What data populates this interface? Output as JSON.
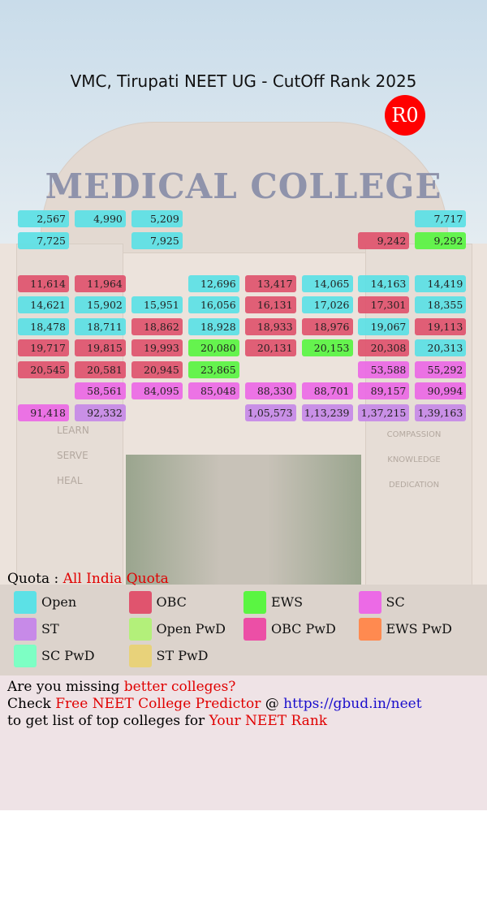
{
  "header": {
    "title": "VMC, Tirupati NEET UG - CutOff Rank 2025",
    "round": "R0"
  },
  "background": {
    "sign": "MEDICAL COLLEGE",
    "left_words": [
      "LEARN",
      "SERVE",
      "HEAL"
    ],
    "right_words": [
      "COMPASSION",
      "KNOWLEDGE",
      "DEDICATION"
    ]
  },
  "grid": {
    "rows": [
      [
        {
          "text": "2,567",
          "quota": "Open"
        },
        {
          "text": "4,990",
          "quota": "Open"
        },
        {
          "text": "5,209",
          "quota": "Open"
        },
        null,
        null,
        null,
        null,
        {
          "text": "7,717",
          "quota": "Open"
        }
      ],
      [
        {
          "text": "7,725",
          "quota": "Open"
        },
        null,
        {
          "text": "7,925",
          "quota": "Open"
        },
        null,
        null,
        null,
        {
          "text": "9,242",
          "quota": "OBC"
        },
        {
          "text": "9,292",
          "quota": "EWS"
        }
      ],
      [
        null,
        null,
        null,
        null,
        null,
        null,
        null,
        null
      ],
      [
        {
          "text": "11,614",
          "quota": "OBC"
        },
        {
          "text": "11,964",
          "quota": "OBC"
        },
        null,
        {
          "text": "12,696",
          "quota": "Open"
        },
        {
          "text": "13,417",
          "quota": "OBC"
        },
        {
          "text": "14,065",
          "quota": "Open"
        },
        {
          "text": "14,163",
          "quota": "Open"
        },
        {
          "text": "14,419",
          "quota": "Open"
        }
      ],
      [
        {
          "text": "14,621",
          "quota": "Open"
        },
        {
          "text": "15,902",
          "quota": "Open"
        },
        {
          "text": "15,951",
          "quota": "Open"
        },
        {
          "text": "16,056",
          "quota": "Open"
        },
        {
          "text": "16,131",
          "quota": "OBC"
        },
        {
          "text": "17,026",
          "quota": "Open"
        },
        {
          "text": "17,301",
          "quota": "OBC"
        },
        {
          "text": "18,355",
          "quota": "Open"
        }
      ],
      [
        {
          "text": "18,478",
          "quota": "Open"
        },
        {
          "text": "18,711",
          "quota": "Open"
        },
        {
          "text": "18,862",
          "quota": "OBC"
        },
        {
          "text": "18,928",
          "quota": "Open"
        },
        {
          "text": "18,933",
          "quota": "OBC"
        },
        {
          "text": "18,976",
          "quota": "OBC"
        },
        {
          "text": "19,067",
          "quota": "Open"
        },
        {
          "text": "19,113",
          "quota": "OBC"
        }
      ],
      [
        {
          "text": "19,717",
          "quota": "OBC"
        },
        {
          "text": "19,815",
          "quota": "OBC"
        },
        {
          "text": "19,993",
          "quota": "OBC"
        },
        {
          "text": "20,080",
          "quota": "EWS"
        },
        {
          "text": "20,131",
          "quota": "OBC"
        },
        {
          "text": "20,153",
          "quota": "EWS"
        },
        {
          "text": "20,308",
          "quota": "OBC"
        },
        {
          "text": "20,313",
          "quota": "Open"
        }
      ],
      [
        {
          "text": "20,545",
          "quota": "OBC"
        },
        {
          "text": "20,581",
          "quota": "OBC"
        },
        {
          "text": "20,945",
          "quota": "OBC"
        },
        {
          "text": "23,865",
          "quota": "EWS"
        },
        null,
        null,
        {
          "text": "53,588",
          "quota": "SC"
        },
        {
          "text": "55,292",
          "quota": "SC"
        }
      ],
      [
        null,
        {
          "text": "58,561",
          "quota": "SC"
        },
        {
          "text": "84,095",
          "quota": "SC"
        },
        {
          "text": "85,048",
          "quota": "SC"
        },
        {
          "text": "88,330",
          "quota": "SC"
        },
        {
          "text": "88,701",
          "quota": "SC"
        },
        {
          "text": "89,157",
          "quota": "SC"
        },
        {
          "text": "90,994",
          "quota": "SC"
        }
      ],
      [
        {
          "text": "91,418",
          "quota": "SC"
        },
        {
          "text": "92,332",
          "quota": "ST"
        },
        null,
        null,
        {
          "text": "1,05,573",
          "quota": "ST"
        },
        {
          "text": "1,13,239",
          "quota": "ST"
        },
        {
          "text": "1,37,215",
          "quota": "ST"
        },
        {
          "text": "1,39,163",
          "quota": "ST"
        }
      ]
    ]
  },
  "quota": {
    "label": "Quota :",
    "value": "All India Quota"
  },
  "legend": [
    {
      "label": "Open",
      "color": "#5ce1e6"
    },
    {
      "label": "OBC",
      "color": "#e0546e"
    },
    {
      "label": "EWS",
      "color": "#5af542"
    },
    {
      "label": "SC",
      "color": "#ec6ae6"
    },
    {
      "label": "ST",
      "color": "#c78ae8"
    },
    {
      "label": "Open PwD",
      "color": "#b3f07a"
    },
    {
      "label": "OBC PwD",
      "color": "#ec4fa6"
    },
    {
      "label": "EWS PwD",
      "color": "#ff8a50"
    },
    {
      "label": "SC PwD",
      "color": "#7dffc4"
    },
    {
      "label": "ST PwD",
      "color": "#e8d27a"
    }
  ],
  "footer": {
    "lines": [
      [
        {
          "text": "Are you missing ",
          "color": "#000000"
        },
        {
          "text": "better colleges?",
          "color": "#e00000"
        }
      ],
      [
        {
          "text": "Check ",
          "color": "#000000"
        },
        {
          "text": "Free NEET College Predictor",
          "color": "#e00000"
        },
        {
          "text": " @ ",
          "color": "#000000"
        },
        {
          "text": "https://gbud.in/neet",
          "color": "#1a0dcc"
        }
      ],
      [
        {
          "text": "to get list of top colleges for ",
          "color": "#000000"
        },
        {
          "text": "Your NEET Rank",
          "color": "#e00000"
        }
      ]
    ]
  }
}
